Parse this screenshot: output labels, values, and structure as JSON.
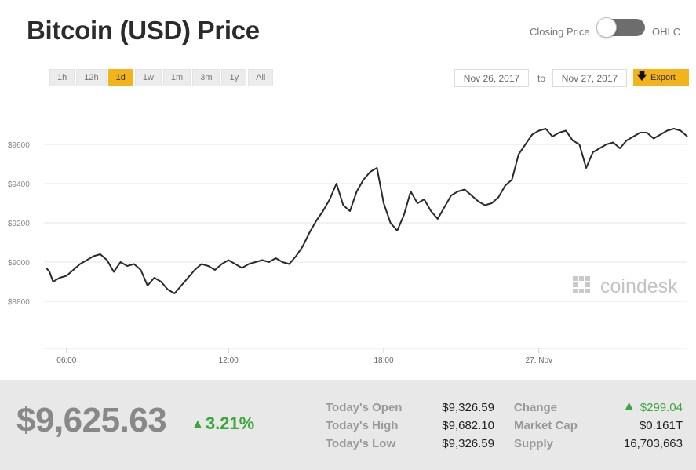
{
  "title": "Bitcoin (USD) Price",
  "toggle": {
    "left_label": "Closing Price",
    "right_label": "OHLC"
  },
  "ranges": [
    {
      "label": "1h",
      "active": false
    },
    {
      "label": "12h",
      "active": false
    },
    {
      "label": "1d",
      "active": true
    },
    {
      "label": "1w",
      "active": false
    },
    {
      "label": "1m",
      "active": false
    },
    {
      "label": "3m",
      "active": false
    },
    {
      "label": "1y",
      "active": false
    },
    {
      "label": "All",
      "active": false
    }
  ],
  "date_range": {
    "from": "Nov 26, 2017",
    "separator": "to",
    "to": "Nov 27, 2017"
  },
  "export_label": "Export",
  "watermark": "coindesk",
  "colors": {
    "accent": "#f3b31a",
    "line": "#2a2a2a",
    "positive": "#3aa83a"
  },
  "chart_data": {
    "type": "line",
    "y_tick_labels": [
      "$8800",
      "$9000",
      "$9200",
      "$9400",
      "$9600"
    ],
    "y_ticks": [
      8800,
      9000,
      9200,
      9400,
      9600
    ],
    "ylim": [
      8600,
      9800
    ],
    "x_tick_labels": [
      "06:00",
      "12:00",
      "18:00",
      "27. Nov"
    ],
    "x_ticks": [
      3.75,
      9.75,
      15.5,
      21.25
    ],
    "xlim": [
      3.0,
      26.75
    ],
    "grid": true,
    "series": [
      {
        "x": [
          3.0,
          3.12,
          3.25,
          3.5,
          3.75,
          4.0,
          4.25,
          4.5,
          4.75,
          5.0,
          5.25,
          5.5,
          5.75,
          6.0,
          6.25,
          6.5,
          6.75,
          7.0,
          7.25,
          7.5,
          7.75,
          8.0,
          8.25,
          8.5,
          8.75,
          9.0,
          9.25,
          9.5,
          9.75,
          10.0,
          10.25,
          10.5,
          10.75,
          11.0,
          11.25,
          11.5,
          11.75,
          12.0,
          12.25,
          12.5,
          12.75,
          13.0,
          13.25,
          13.5,
          13.75,
          14.0,
          14.25,
          14.5,
          14.75,
          15.0,
          15.25,
          15.5,
          15.75,
          16.0,
          16.25,
          16.5,
          16.75,
          17.0,
          17.25,
          17.5,
          17.75,
          18.0,
          18.25,
          18.5,
          18.75,
          19.0,
          19.25,
          19.5,
          19.75,
          20.0,
          20.25,
          20.5,
          20.75,
          21.0,
          21.25,
          21.5,
          21.75,
          22.0,
          22.25,
          22.5,
          22.75,
          23.0,
          23.25,
          23.5,
          23.75,
          24.0,
          24.25,
          24.5,
          24.75,
          25.0,
          25.25,
          25.5,
          25.75,
          26.0,
          26.25,
          26.5,
          26.75
        ],
        "y": [
          8970,
          8950,
          8900,
          8920,
          8930,
          8960,
          8990,
          9010,
          9030,
          9040,
          9010,
          8950,
          9000,
          8980,
          8990,
          8960,
          8880,
          8920,
          8900,
          8860,
          8840,
          8880,
          8920,
          8960,
          8990,
          8980,
          8960,
          8990,
          9010,
          8990,
          8970,
          8990,
          9000,
          9010,
          9000,
          9020,
          9000,
          8990,
          9030,
          9080,
          9150,
          9210,
          9260,
          9320,
          9400,
          9290,
          9260,
          9360,
          9420,
          9460,
          9480,
          9300,
          9200,
          9160,
          9240,
          9360,
          9300,
          9320,
          9260,
          9220,
          9280,
          9340,
          9360,
          9370,
          9340,
          9310,
          9290,
          9300,
          9330,
          9390,
          9420,
          9550,
          9600,
          9650,
          9670,
          9680,
          9640,
          9660,
          9670,
          9620,
          9600,
          9480,
          9560,
          9580,
          9600,
          9610,
          9580,
          9620,
          9640,
          9660,
          9660,
          9630,
          9650,
          9670,
          9680,
          9670,
          9640
        ]
      }
    ]
  },
  "footer": {
    "price": "$9,625.63",
    "change_pct": "3.21%",
    "stats": [
      {
        "label": "Today's Open",
        "value": "$9,326.59"
      },
      {
        "label": "Today's High",
        "value": "$9,682.10"
      },
      {
        "label": "Today's Low",
        "value": "$9,326.59"
      }
    ],
    "stats2": [
      {
        "label": "Change",
        "value": "$299.04"
      },
      {
        "label": "Market Cap",
        "value": "$0.161T"
      },
      {
        "label": "Supply",
        "value": "16,703,663"
      }
    ]
  }
}
